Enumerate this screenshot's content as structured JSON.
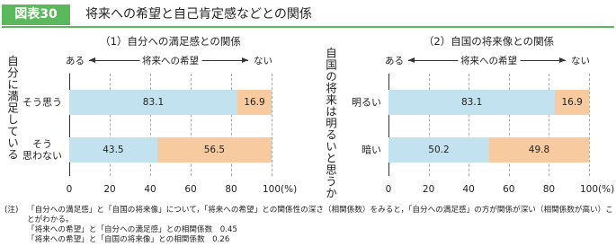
{
  "header": {
    "figure_no": "図表30",
    "title": "将来への希望と自己肯定感などとの関係"
  },
  "chart_data": [
    {
      "type": "stacked-bar",
      "title": "（1）自分への満足感との関係",
      "scale_labels": {
        "left": "ある",
        "center": "将来への希望",
        "right": "ない"
      },
      "y_label": "自分に満足している",
      "categories": [
        "そう思う",
        "そう\n思わない"
      ],
      "series": [
        {
          "color": "#c3e2ef",
          "values": [
            83.1,
            43.5
          ]
        },
        {
          "color": "#f7caa0",
          "values": [
            16.9,
            56.5
          ]
        }
      ],
      "xlim": [
        0,
        100
      ],
      "xticks": [
        0,
        20,
        40,
        60,
        80,
        100
      ],
      "x_unit": "(%)",
      "grid": true
    },
    {
      "type": "stacked-bar",
      "title": "（2）自国の将来像との関係",
      "scale_labels": {
        "left": "ある",
        "center": "将来への希望",
        "right": "ない"
      },
      "y_label": "自国の将来は明るいと思うか",
      "categories": [
        "明るい",
        "暗い"
      ],
      "series": [
        {
          "color": "#c3e2ef",
          "values": [
            83.1,
            50.2
          ]
        },
        {
          "color": "#f7caa0",
          "values": [
            16.9,
            49.8
          ]
        }
      ],
      "xlim": [
        0,
        100
      ],
      "xticks": [
        0,
        20,
        40,
        60,
        80,
        100
      ],
      "x_unit": "(%)",
      "grid": true
    }
  ],
  "notes": {
    "label": "(注)",
    "lines": [
      "「自分への満足感」と「自国の将来像」について，「将来への希望」との関係性の深さ（相関係数）をみると，「自分への満足感」の方が関係が深い（相関係数が高い）ことがわかる。",
      "「将来への希望」と「自分への満足感」との相関係数　0.45",
      "「将来への希望」と「自国の将来像」との相関係数　0.26"
    ]
  }
}
